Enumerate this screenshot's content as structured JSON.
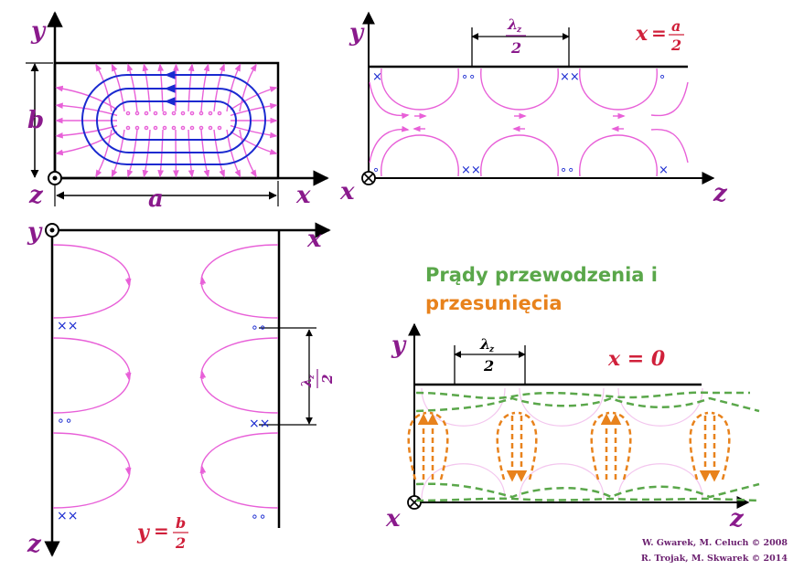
{
  "title": {
    "line1": "Prądy przewodzenia i",
    "line2": "przesunięcia"
  },
  "credits": {
    "line1": "W. Gwarek, M. Celuch © 2008",
    "line2": "R. Trojak, M. Skwarek © 2014"
  },
  "axes": {
    "x": "x",
    "y": "y",
    "z": "z"
  },
  "dims": {
    "a": "a",
    "b": "b",
    "lambda": "λ",
    "lambda_sub": "z",
    "two": "2"
  },
  "planes": {
    "top_right_lhs": "x",
    "top_right_num": "a",
    "top_right_den": "2",
    "bottom_left_lhs": "y",
    "bottom_left_num": "b",
    "bottom_left_den": "2",
    "bottom_right": "x = 0"
  },
  "markers": {
    "cross": "×",
    "double_cross": "××",
    "circle": "∘",
    "double_circle": "∘∘"
  },
  "colors": {
    "field_magenta": "#e860d8",
    "field_blue": "#1a2ad0",
    "conduction_green": "#5aa74a",
    "displacement_orange": "#e8821c",
    "label_purple": "#8a1a8c",
    "label_red": "#d0203a",
    "ink": "#000000"
  }
}
